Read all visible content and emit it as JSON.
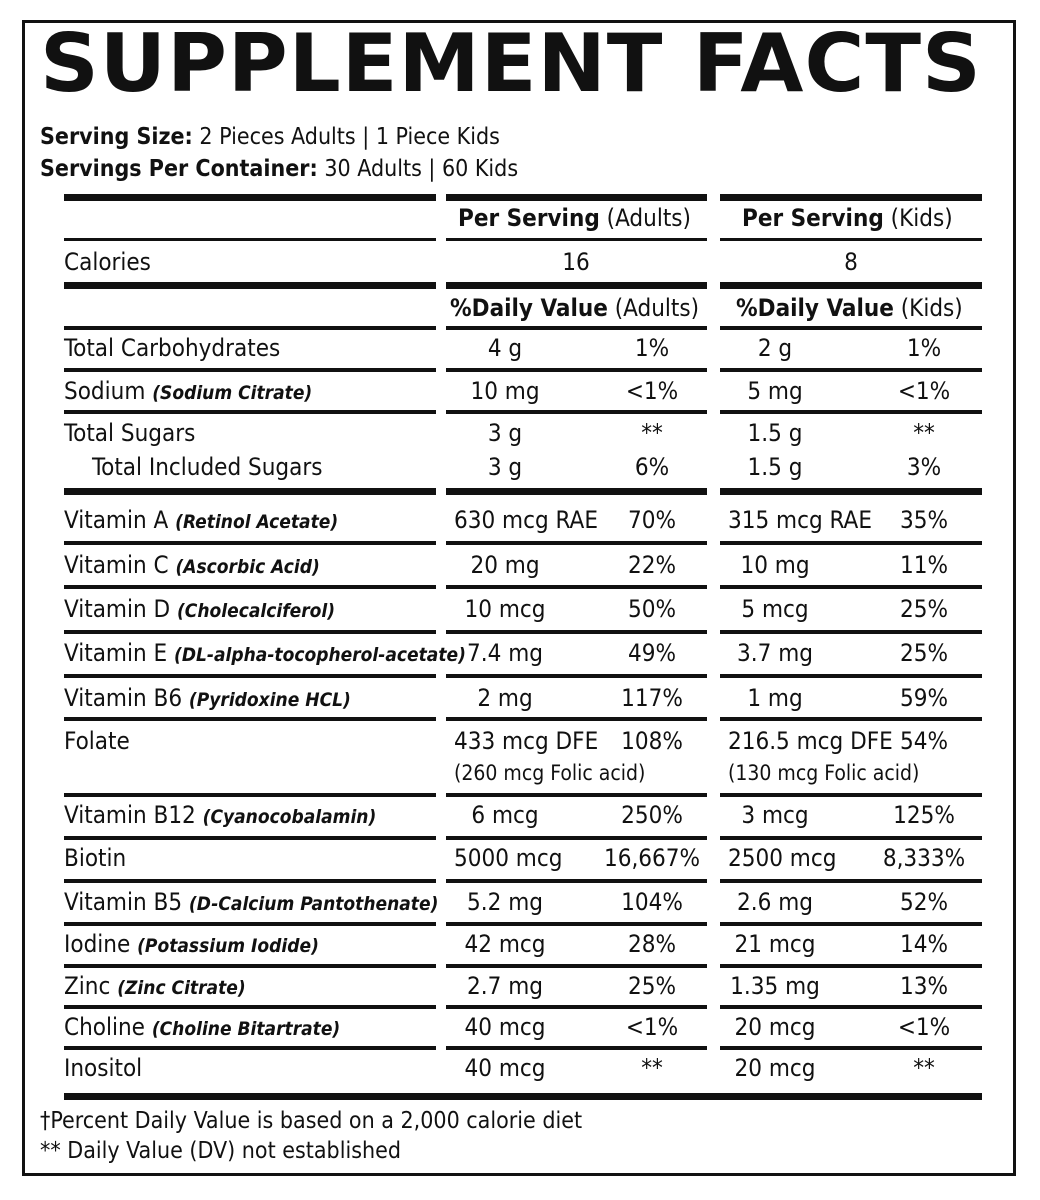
{
  "title": "SUPPLEMENT FACTS",
  "serving_size": {
    "label": "Serving Size:",
    "value": "2 Pieces Adults | 1 Piece Kids"
  },
  "servings_per_container": {
    "label": "Servings Per Container:",
    "value": "30 Adults | 60 Kids"
  },
  "headers": {
    "per_serving_adults_bold": "Per Serving",
    "per_serving_adults_rest": "(Adults)",
    "per_serving_kids_bold": "Per Serving",
    "per_serving_kids_rest": "(Kids)",
    "dv_adults_bold": "%Daily Value",
    "dv_adults_rest": "(Adults)",
    "dv_kids_bold": "%Daily Value",
    "dv_kids_rest": "(Kids)"
  },
  "calories": {
    "label": "Calories",
    "adults": "16",
    "kids": "8"
  },
  "rows": [
    {
      "name": "Total Carbohydrates",
      "source": "",
      "a_amt": "4 g",
      "a_dv": "1%",
      "k_amt": "2 g",
      "k_dv": "1%"
    },
    {
      "name": "Sodium",
      "source": "(Sodium Citrate)",
      "a_amt": "10 mg",
      "a_dv": "<1%",
      "k_amt": "5 mg",
      "k_dv": "<1%"
    },
    {
      "name": "Total Sugars",
      "source": "",
      "a_amt": "3 g",
      "a_dv": "**",
      "k_amt": "1.5 g",
      "k_dv": "**"
    },
    {
      "name": "Total Included Sugars",
      "source": "",
      "a_amt": "3 g",
      "a_dv": "6%",
      "k_amt": "1.5 g",
      "k_dv": "3%"
    },
    {
      "name": "Vitamin A",
      "source": "(Retinol Acetate)",
      "a_amt": "630 mcg RAE",
      "a_dv": "70%",
      "k_amt": "315 mcg RAE",
      "k_dv": "35%"
    },
    {
      "name": "Vitamin C",
      "source": "(Ascorbic Acid)",
      "a_amt": "20 mg",
      "a_dv": "22%",
      "k_amt": "10 mg",
      "k_dv": "11%"
    },
    {
      "name": "Vitamin D",
      "source": "(Cholecalciferol)",
      "a_amt": "10 mcg",
      "a_dv": "50%",
      "k_amt": "5 mcg",
      "k_dv": "25%"
    },
    {
      "name": "Vitamin E",
      "source": "(DL-alpha-tocopherol-acetate)",
      "a_amt": "7.4 mg",
      "a_dv": "49%",
      "k_amt": "3.7 mg",
      "k_dv": "25%"
    },
    {
      "name": "Vitamin B6",
      "source": "(Pyridoxine HCL)",
      "a_amt": "2 mg",
      "a_dv": "117%",
      "k_amt": "1 mg",
      "k_dv": "59%"
    },
    {
      "name": "Folate",
      "source": "",
      "a_amt": "433 mcg DFE",
      "a_dv": "108%",
      "k_amt": "216.5 mcg DFE",
      "k_dv": "54%",
      "a_sub": "(260 mcg Folic acid)",
      "k_sub": "(130 mcg Folic acid)"
    },
    {
      "name": "Vitamin B12",
      "source": "(Cyanocobalamin)",
      "a_amt": "6 mcg",
      "a_dv": "250%",
      "k_amt": "3 mcg",
      "k_dv": "125%"
    },
    {
      "name": "Biotin",
      "source": "",
      "a_amt": "5000 mcg",
      "a_dv": "16,667%",
      "k_amt": "2500 mcg",
      "k_dv": "8,333%"
    },
    {
      "name": "Vitamin B5",
      "source": "(D-Calcium Pantothenate)",
      "a_amt": "5.2 mg",
      "a_dv": "104%",
      "k_amt": "2.6 mg",
      "k_dv": "52%"
    },
    {
      "name": "Iodine",
      "source": "(Potassium Iodide)",
      "a_amt": "42 mcg",
      "a_dv": "28%",
      "k_amt": "21 mcg",
      "k_dv": "14%"
    },
    {
      "name": "Zinc",
      "source": "(Zinc Citrate)",
      "a_amt": "2.7 mg",
      "a_dv": "25%",
      "k_amt": "1.35 mg",
      "k_dv": "13%"
    },
    {
      "name": "Choline",
      "source": "(Choline Bitartrate)",
      "a_amt": "40 mcg",
      "a_dv": "<1%",
      "k_amt": "20 mcg",
      "k_dv": "<1%"
    },
    {
      "name": "Inositol",
      "source": "",
      "a_amt": "40 mcg",
      "a_dv": "**",
      "k_amt": "20 mcg",
      "k_dv": "**"
    }
  ],
  "footnotes": [
    "†Percent Daily Value is based on a 2,000 calorie diet",
    "** Daily Value (DV) not established"
  ]
}
